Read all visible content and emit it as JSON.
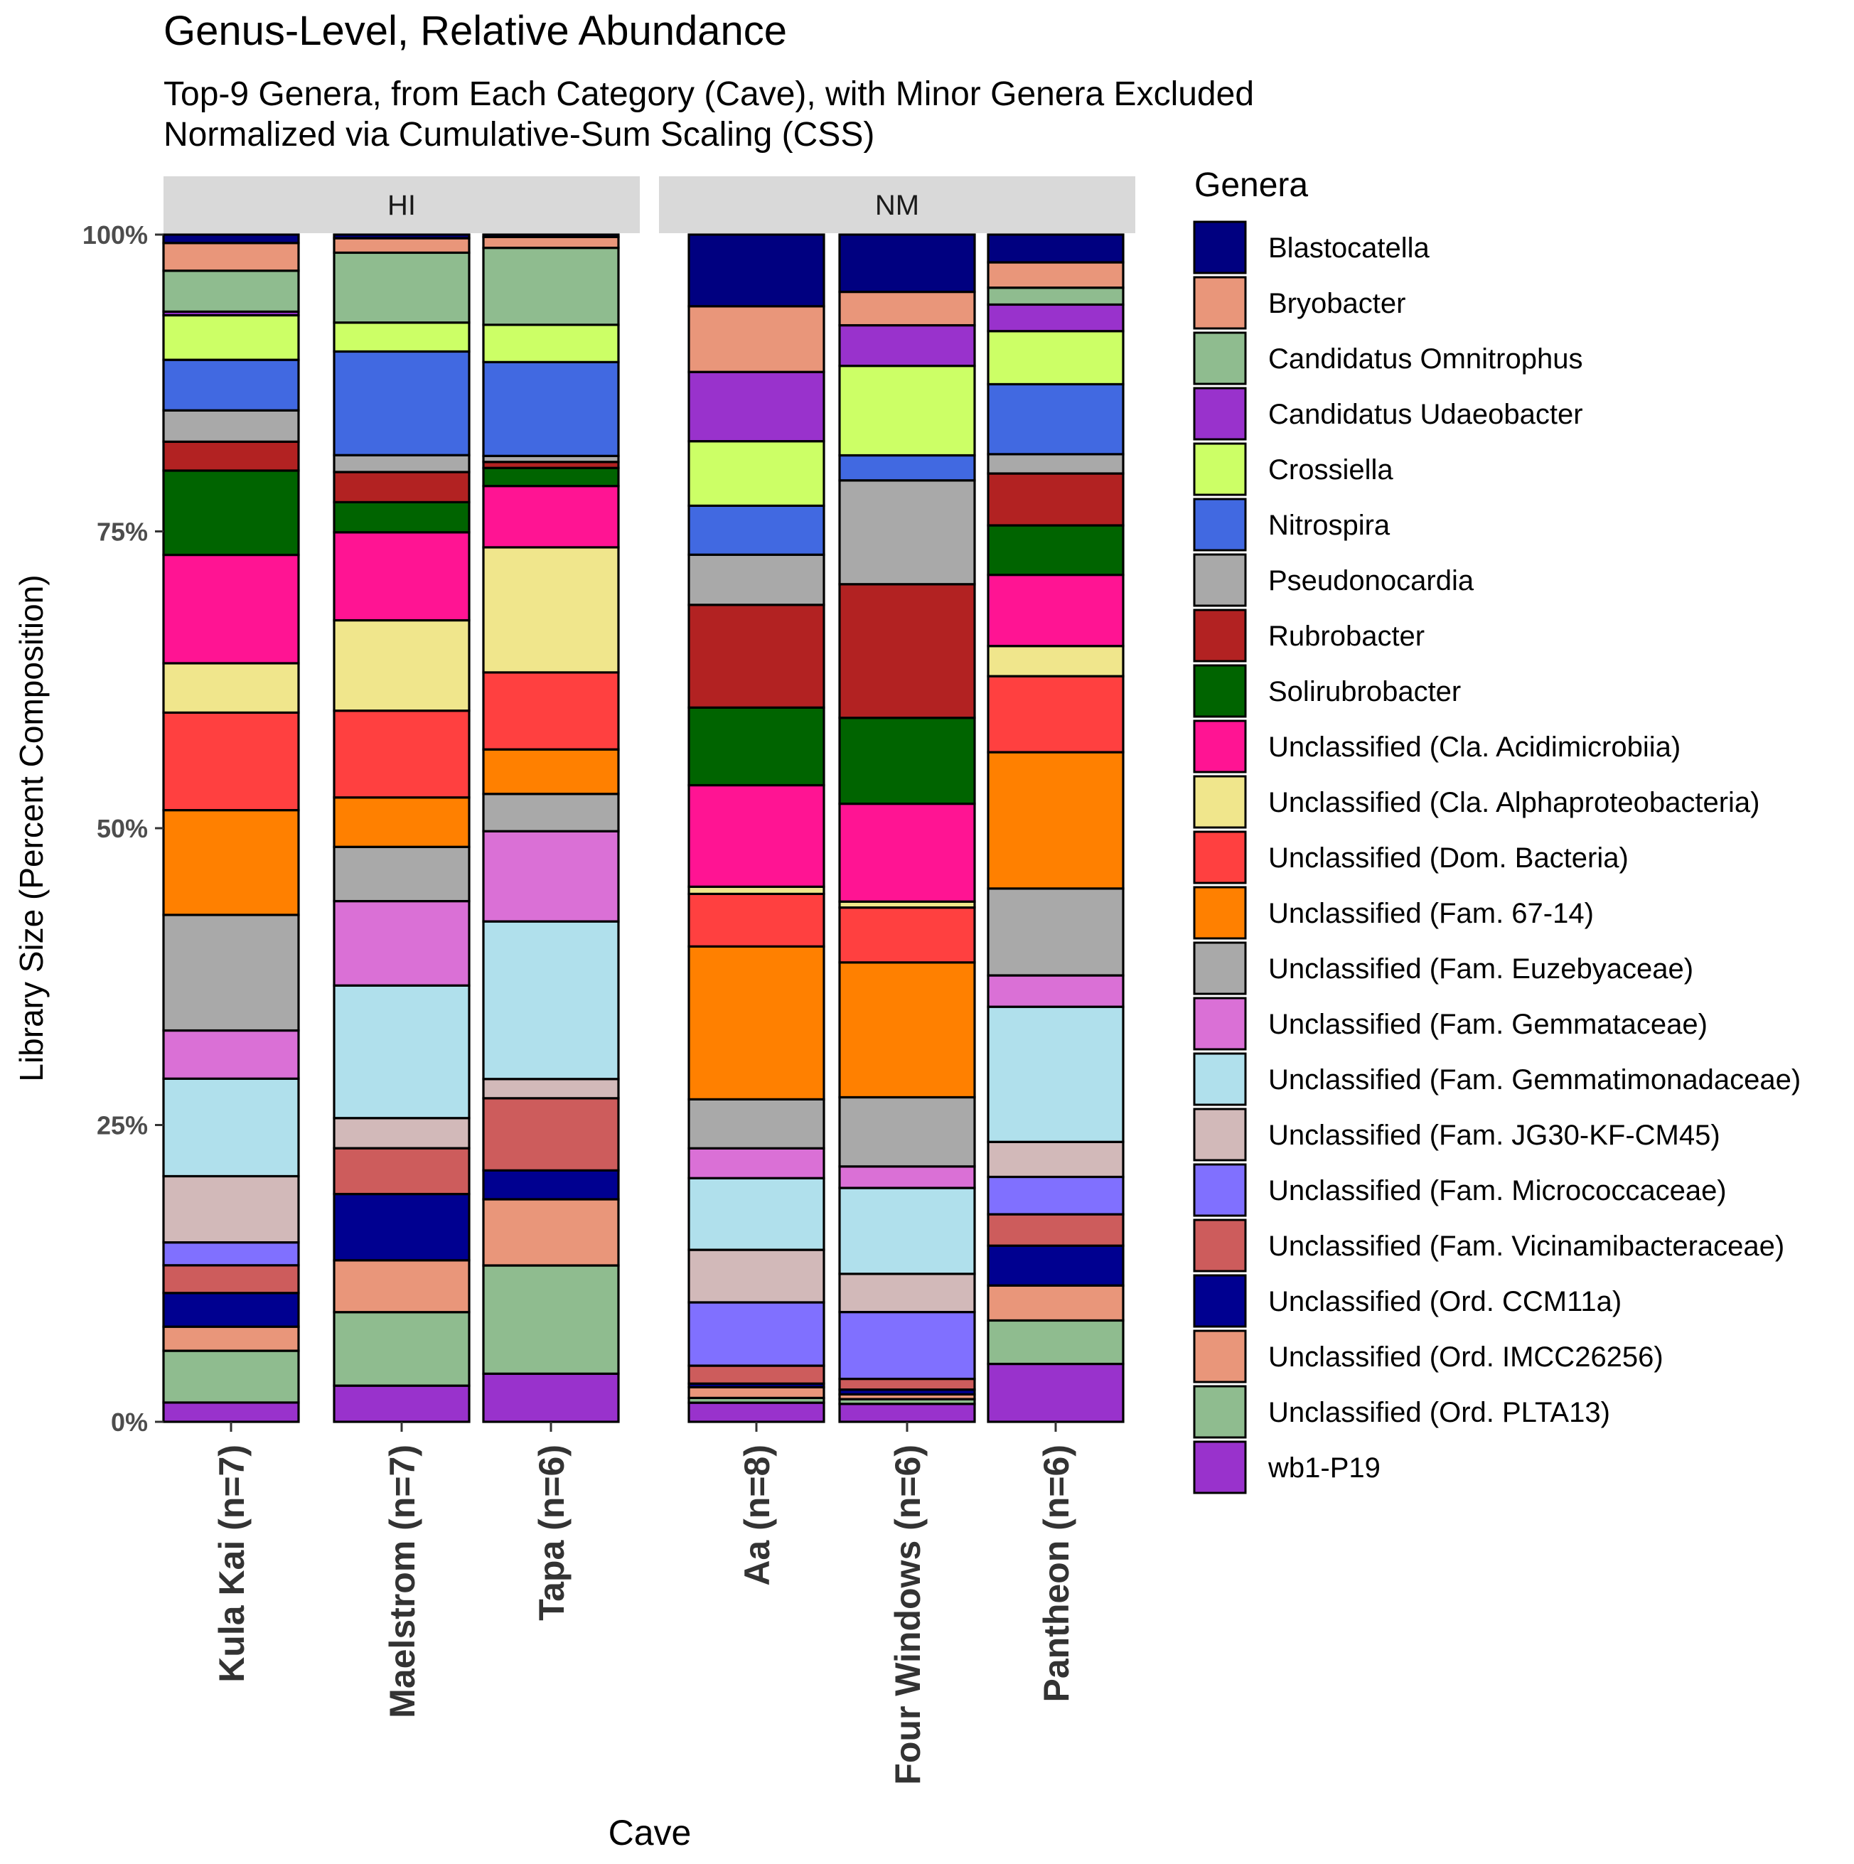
{
  "chart_data": {
    "type": "bar",
    "stacked": true,
    "title": "Genus-Level, Relative Abundance",
    "subtitle": [
      "Top-9 Genera, from Each Category (Cave), with Minor Genera Excluded",
      "Normalized via Cumulative-Sum Scaling (CSS)"
    ],
    "xlabel": "Cave",
    "ylabel": "Library Size (Percent Composition)",
    "ylim": [
      0,
      100
    ],
    "yticks": [
      "0%",
      "25%",
      "50%",
      "75%",
      "100%"
    ],
    "legend_title": "Genera",
    "legend_placement": "right",
    "facets": [
      "HI",
      "NM"
    ],
    "genera": [
      {
        "name": "Blastocatella",
        "color": "#000080"
      },
      {
        "name": "Bryobacter",
        "color": "#E9967A"
      },
      {
        "name": "Candidatus Omnitrophus",
        "color": "#8FBC8F"
      },
      {
        "name": "Candidatus Udaeobacter",
        "color": "#9932CC"
      },
      {
        "name": "Crossiella",
        "color": "#CCFF66"
      },
      {
        "name": "Nitrospira",
        "color": "#4169E1"
      },
      {
        "name": "Pseudonocardia",
        "color": "#A9A9A9"
      },
      {
        "name": "Rubrobacter",
        "color": "#B22222"
      },
      {
        "name": "Solirubrobacter",
        "color": "#006400"
      },
      {
        "name": "Unclassified (Cla. Acidimicrobiia)",
        "color": "#FF1493"
      },
      {
        "name": "Unclassified (Cla. Alphaproteobacteria)",
        "color": "#F0E68C"
      },
      {
        "name": "Unclassified (Dom. Bacteria)",
        "color": "#FF4040"
      },
      {
        "name": "Unclassified (Fam. 67-14)",
        "color": "#FF8000"
      },
      {
        "name": "Unclassified (Fam. Euzebyaceae)",
        "color": "#A9A9A9"
      },
      {
        "name": "Unclassified (Fam. Gemmataceae)",
        "color": "#DA70D6"
      },
      {
        "name": "Unclassified (Fam. Gemmatimonadaceae)",
        "color": "#B0E0EC"
      },
      {
        "name": "Unclassified (Fam. JG30-KF-CM45)",
        "color": "#D2B9B9"
      },
      {
        "name": "Unclassified (Fam. Micrococcaceae)",
        "color": "#8070FF"
      },
      {
        "name": "Unclassified (Fam. Vicinamibacteraceae)",
        "color": "#CD5C5C"
      },
      {
        "name": "Unclassified (Ord. CCM11a)",
        "color": "#000090"
      },
      {
        "name": "Unclassified (Ord. IMCC26256)",
        "color": "#E9967A"
      },
      {
        "name": "Unclassified (Ord. PLTA13)",
        "color": "#8FBC8F"
      },
      {
        "name": "wb1-P19",
        "color": "#9932CC"
      }
    ],
    "bars": [
      {
        "label": "Kula Kai (n=7)",
        "facet": "HI",
        "values": [
          0.7,
          2.3,
          3.4,
          0.3,
          3.7,
          4.2,
          2.6,
          2.4,
          7.0,
          9.0,
          4.1,
          8.1,
          8.7,
          9.6,
          4.0,
          8.1,
          5.5,
          1.9,
          2.3,
          2.8,
          2.0,
          4.3,
          1.6
        ]
      },
      {
        "label": "Maelstrom (n=7)",
        "facet": "HI",
        "values": [
          0.3,
          1.2,
          5.8,
          0,
          2.4,
          8.6,
          1.4,
          2.5,
          2.5,
          7.3,
          7.5,
          7.2,
          4.1,
          4.5,
          7.0,
          11.0,
          2.5,
          0,
          3.8,
          5.5,
          4.3,
          6.1,
          3.0
        ]
      },
      {
        "label": "Tapa (n=6)",
        "facet": "HI",
        "values": [
          0.2,
          0.9,
          6.4,
          0,
          3.1,
          7.8,
          0.5,
          0.5,
          1.5,
          5.1,
          10.4,
          6.4,
          3.7,
          3.1,
          7.5,
          13.1,
          1.6,
          0,
          6.0,
          2.4,
          5.5,
          9.0,
          4.0
        ]
      },
      {
        "label": "Aa (n=8)",
        "facet": "NM",
        "values": [
          6.0,
          5.5,
          0,
          5.8,
          5.4,
          4.1,
          4.2,
          8.6,
          6.5,
          8.5,
          0.6,
          4.4,
          12.8,
          4.1,
          2.5,
          6.0,
          4.4,
          5.3,
          1.5,
          0.3,
          0.9,
          0.4,
          1.6
        ]
      },
      {
        "label": "Four Windows (n=6)",
        "facet": "NM",
        "values": [
          4.8,
          2.8,
          0,
          3.4,
          7.5,
          2.1,
          8.7,
          11.2,
          7.2,
          8.2,
          0.5,
          4.6,
          11.3,
          5.8,
          1.8,
          7.2,
          3.2,
          5.6,
          0.9,
          0.4,
          0.4,
          0.4,
          1.5
        ]
      },
      {
        "label": "Pantheon (n=6)",
        "facet": "NM",
        "values": [
          2.3,
          2.1,
          1.4,
          2.2,
          4.4,
          5.8,
          1.6,
          4.3,
          4.1,
          5.9,
          2.5,
          6.3,
          11.3,
          7.2,
          2.6,
          11.2,
          2.9,
          3.1,
          2.6,
          3.3,
          2.9,
          3.6,
          4.8
        ]
      }
    ]
  }
}
